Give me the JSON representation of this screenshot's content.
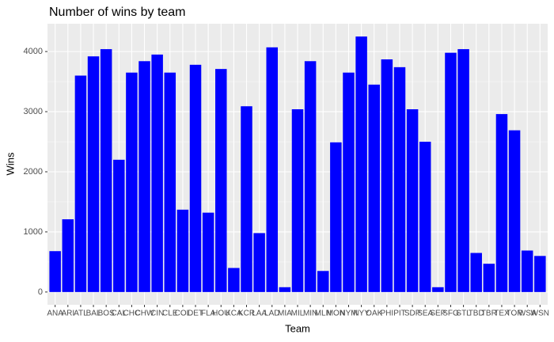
{
  "chart_data": {
    "type": "bar",
    "title": "Number of wins by team",
    "x_label": "Team",
    "y_label": "Wins",
    "categories": [
      "ANA",
      "ARI",
      "ATL",
      "BAL",
      "BOS",
      "CAL",
      "CHC",
      "CHW",
      "CIN",
      "CLE",
      "COL",
      "DET",
      "FLA",
      "HOU",
      "KCA",
      "KCR",
      "LAA",
      "LAD",
      "MIA",
      "MIL",
      "MIN",
      "MLN",
      "MON",
      "NYM",
      "NYY",
      "OAK",
      "PHI",
      "PIT",
      "SDP",
      "SEA",
      "SEP",
      "SFG",
      "STL",
      "TBD",
      "TBR",
      "TEX",
      "TOR",
      "WSA",
      "WSN"
    ],
    "values": [
      680,
      1210,
      3600,
      3920,
      4040,
      2200,
      3650,
      3840,
      3950,
      3650,
      1370,
      3780,
      1320,
      3710,
      400,
      3090,
      980,
      4070,
      80,
      3040,
      3840,
      350,
      2490,
      3650,
      4250,
      3450,
      3870,
      3740,
      3040,
      2500,
      80,
      3980,
      4040,
      650,
      470,
      2960,
      2690,
      690,
      600
    ],
    "color": "#0000ff",
    "ylim": [
      -212.5,
      4462.5
    ],
    "yticks": [
      0,
      1000,
      2000,
      3000,
      4000
    ],
    "grid": true
  }
}
